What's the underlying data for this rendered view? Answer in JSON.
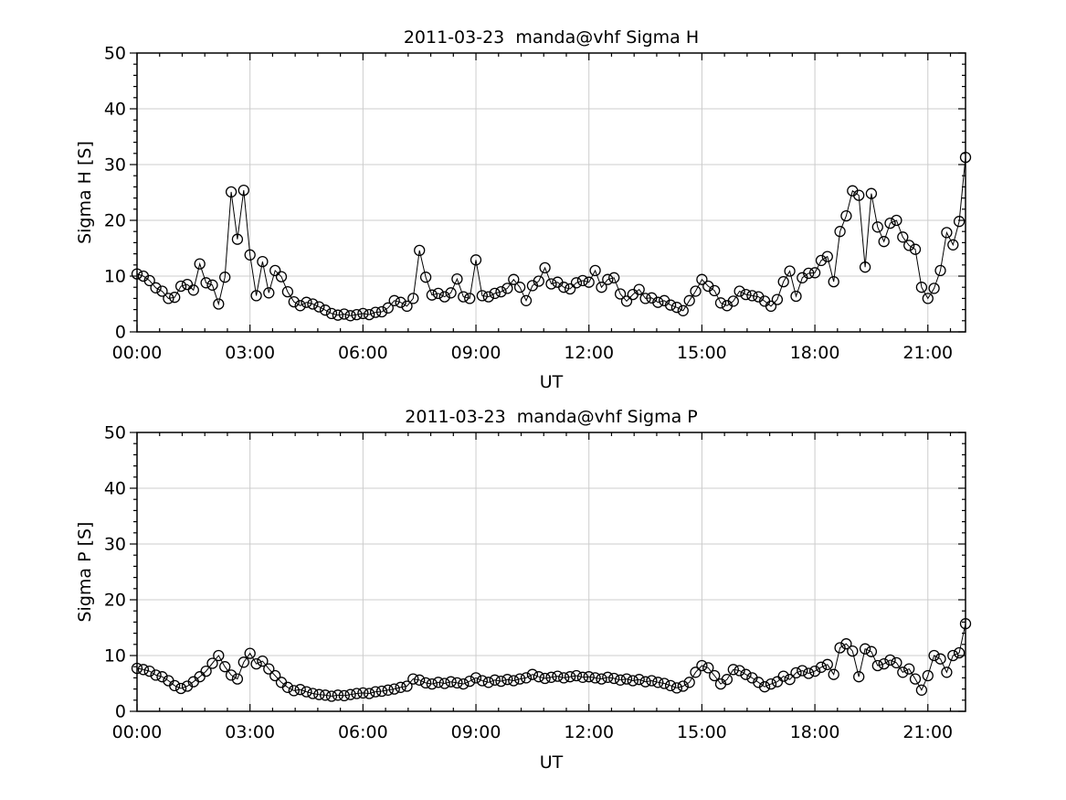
{
  "figure": {
    "background": "#ffffff",
    "text_color": "#000000"
  },
  "chart_data": [
    {
      "type": "line",
      "title": "2011-03-23  manda@vhf Sigma H",
      "xlabel": "UT",
      "ylabel": "Sigma H [S]",
      "marker": "open-circle",
      "line_color": "#000000",
      "grid": true,
      "grid_color": "#cccccc",
      "legend": "none",
      "xlim_hours": [
        0,
        22
      ],
      "ylim": [
        0,
        50
      ],
      "x_tick_hours": [
        0,
        3,
        6,
        9,
        12,
        15,
        18,
        21
      ],
      "x_tick_labels": [
        "00:00",
        "03:00",
        "06:00",
        "09:00",
        "12:00",
        "15:00",
        "18:00",
        "21:00"
      ],
      "x_minor_step_hours": 0.6,
      "y_ticks": [
        0,
        10,
        20,
        30,
        40,
        50
      ],
      "y_minor_step": 2,
      "x_start_hour": 0,
      "x_step_minutes": 10,
      "values": [
        10.4,
        10.0,
        9.2,
        7.9,
        7.3,
        6.0,
        6.2,
        8.2,
        8.5,
        7.5,
        12.2,
        8.8,
        8.4,
        5.0,
        9.8,
        25.1,
        16.6,
        25.4,
        13.8,
        6.5,
        12.6,
        7.0,
        11.0,
        9.9,
        7.2,
        5.4,
        4.7,
        5.3,
        5.0,
        4.5,
        3.9,
        3.3,
        3.0,
        3.2,
        2.9,
        3.1,
        3.3,
        3.1,
        3.5,
        3.6,
        4.3,
        5.6,
        5.3,
        4.6,
        6.0,
        14.6,
        9.8,
        6.6,
        6.9,
        6.3,
        7.0,
        9.5,
        6.3,
        6.0,
        12.9,
        6.5,
        6.3,
        6.9,
        7.2,
        7.8,
        9.4,
        8.0,
        5.6,
        8.3,
        9.1,
        11.5,
        8.6,
        8.9,
        8.0,
        7.7,
        8.8,
        9.2,
        8.9,
        11.0,
        8.0,
        9.4,
        9.7,
        6.8,
        5.5,
        6.7,
        7.6,
        6.0,
        6.1,
        5.3,
        5.6,
        4.8,
        4.4,
        3.8,
        5.6,
        7.3,
        9.4,
        8.2,
        7.4,
        5.2,
        4.7,
        5.5,
        7.3,
        6.7,
        6.5,
        6.3,
        5.5,
        4.6,
        5.8,
        9.0,
        10.9,
        6.4,
        9.7,
        10.5,
        10.6,
        12.8,
        13.5,
        9.0,
        18.0,
        20.8,
        25.3,
        24.5,
        11.6,
        24.8,
        18.8,
        16.2,
        19.5,
        20.0,
        17.0,
        15.5,
        14.8,
        8.0,
        6.0,
        7.8,
        11.0,
        17.8,
        15.6,
        19.8,
        31.3
      ]
    },
    {
      "type": "line",
      "title": "2011-03-23  manda@vhf Sigma P",
      "xlabel": "UT",
      "ylabel": "Sigma P [S]",
      "marker": "open-circle",
      "line_color": "#000000",
      "grid": true,
      "grid_color": "#cccccc",
      "legend": "none",
      "xlim_hours": [
        0,
        22
      ],
      "ylim": [
        0,
        50
      ],
      "x_tick_hours": [
        0,
        3,
        6,
        9,
        12,
        15,
        18,
        21
      ],
      "x_tick_labels": [
        "00:00",
        "03:00",
        "06:00",
        "09:00",
        "12:00",
        "15:00",
        "18:00",
        "21:00"
      ],
      "x_minor_step_hours": 0.6,
      "y_ticks": [
        0,
        10,
        20,
        30,
        40,
        50
      ],
      "y_minor_step": 2,
      "x_start_hour": 0,
      "x_step_minutes": 10,
      "values": [
        7.7,
        7.5,
        7.2,
        6.5,
        6.2,
        5.5,
        4.6,
        4.1,
        4.5,
        5.3,
        6.2,
        7.2,
        8.6,
        10.0,
        8.0,
        6.5,
        5.8,
        8.8,
        10.4,
        8.5,
        9.0,
        7.6,
        6.4,
        5.2,
        4.3,
        3.7,
        3.9,
        3.5,
        3.2,
        3.0,
        2.9,
        2.7,
        2.9,
        2.8,
        3.0,
        3.2,
        3.3,
        3.2,
        3.5,
        3.6,
        3.8,
        4.0,
        4.3,
        4.5,
        5.8,
        5.6,
        5.1,
        4.9,
        5.2,
        5.0,
        5.3,
        5.1,
        4.9,
        5.4,
        6.0,
        5.5,
        5.2,
        5.6,
        5.4,
        5.7,
        5.5,
        5.8,
        6.0,
        6.6,
        6.2,
        5.9,
        6.1,
        6.3,
        6.0,
        6.2,
        6.4,
        6.1,
        6.2,
        6.0,
        5.8,
        6.1,
        5.9,
        5.6,
        5.8,
        5.5,
        5.7,
        5.3,
        5.5,
        5.2,
        5.0,
        4.6,
        4.2,
        4.5,
        5.2,
        7.0,
        8.2,
        7.8,
        6.4,
        4.9,
        5.7,
        7.5,
        7.3,
        6.6,
        6.0,
        5.2,
        4.4,
        4.9,
        5.3,
        6.3,
        5.7,
        6.9,
        7.3,
        6.8,
        7.2,
        7.9,
        8.4,
        6.6,
        11.4,
        12.1,
        10.8,
        6.2,
        11.2,
        10.7,
        8.2,
        8.5,
        9.2,
        8.7,
        7.0,
        7.6,
        5.8,
        3.8,
        6.4,
        10.0,
        9.4,
        7.0,
        10.0,
        10.5,
        15.7
      ]
    }
  ]
}
